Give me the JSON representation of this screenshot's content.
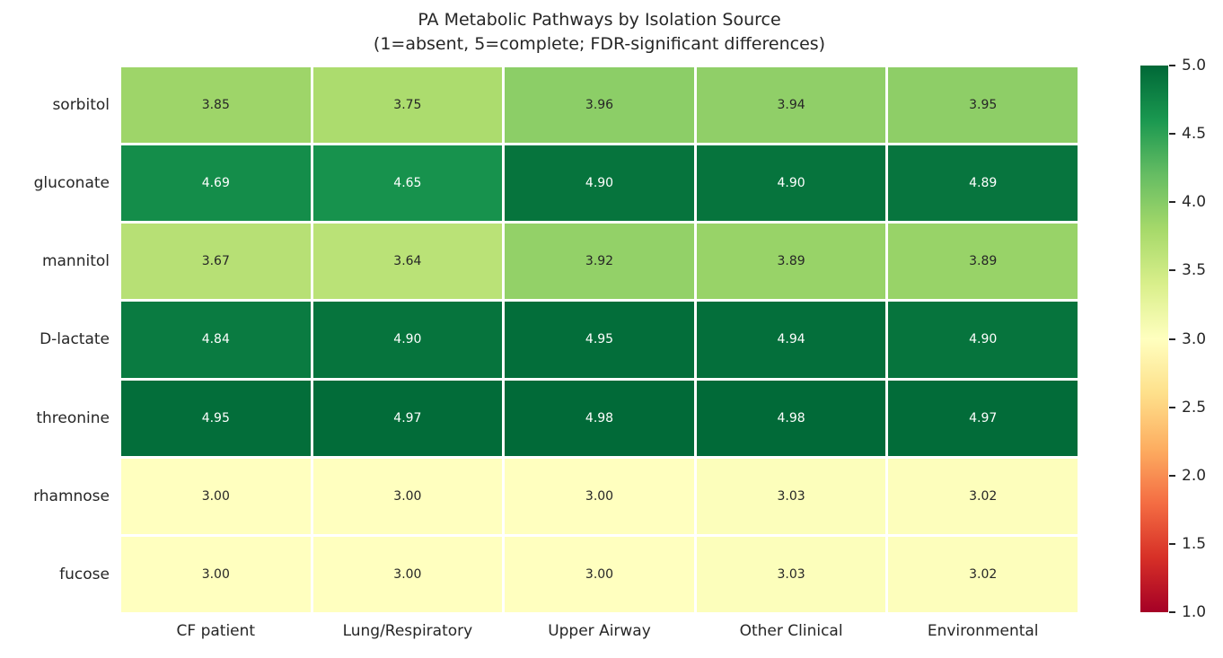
{
  "title": {
    "line1": "PA Metabolic Pathways by Isolation Source",
    "line2": "(1=absent, 5=complete; FDR-significant differences)"
  },
  "chart_data": {
    "type": "heatmap",
    "title": "PA Metabolic Pathways by Isolation Source (1=absent, 5=complete; FDR-significant differences)",
    "rows": [
      "sorbitol",
      "gluconate",
      "mannitol",
      "D-lactate",
      "threonine",
      "rhamnose",
      "fucose"
    ],
    "columns": [
      "CF patient",
      "Lung/Respiratory",
      "Upper Airway",
      "Other Clinical",
      "Environmental"
    ],
    "values": [
      [
        3.85,
        3.75,
        3.96,
        3.94,
        3.95
      ],
      [
        4.69,
        4.65,
        4.9,
        4.9,
        4.89
      ],
      [
        3.67,
        3.64,
        3.92,
        3.89,
        3.89
      ],
      [
        4.84,
        4.9,
        4.95,
        4.94,
        4.9
      ],
      [
        4.95,
        4.97,
        4.98,
        4.98,
        4.97
      ],
      [
        3.0,
        3.0,
        3.0,
        3.03,
        3.02
      ],
      [
        3.0,
        3.0,
        3.0,
        3.03,
        3.02
      ]
    ],
    "value_decimals": 2,
    "vmin": 1.0,
    "vmax": 5.0,
    "colormap": "RdYlGn",
    "colormap_stops": [
      {
        "t": 0.0,
        "color": "#a50026"
      },
      {
        "t": 0.1,
        "color": "#d73027"
      },
      {
        "t": 0.2,
        "color": "#f46d43"
      },
      {
        "t": 0.3,
        "color": "#fdae61"
      },
      {
        "t": 0.4,
        "color": "#fee08b"
      },
      {
        "t": 0.5,
        "color": "#ffffbf"
      },
      {
        "t": 0.6,
        "color": "#d9ef8b"
      },
      {
        "t": 0.7,
        "color": "#a6d96a"
      },
      {
        "t": 0.8,
        "color": "#66bd63"
      },
      {
        "t": 0.9,
        "color": "#1a9850"
      },
      {
        "t": 1.0,
        "color": "#006837"
      }
    ],
    "colorbar_ticks": [
      {
        "value": 5.0,
        "label": "5.0"
      },
      {
        "value": 4.5,
        "label": "4.5"
      },
      {
        "value": 4.0,
        "label": "4.0"
      },
      {
        "value": 3.5,
        "label": "3.5"
      },
      {
        "value": 3.0,
        "label": "3.0"
      },
      {
        "value": 2.5,
        "label": "2.5"
      },
      {
        "value": 2.0,
        "label": "2.0"
      },
      {
        "value": 1.5,
        "label": "1.5"
      },
      {
        "value": 1.0,
        "label": "1.0"
      }
    ],
    "grid_line_color": "#ffffff",
    "annotation_dark_color": "#262626",
    "annotation_light_color": "#ffffff",
    "legend_position": "right",
    "grid": false
  }
}
